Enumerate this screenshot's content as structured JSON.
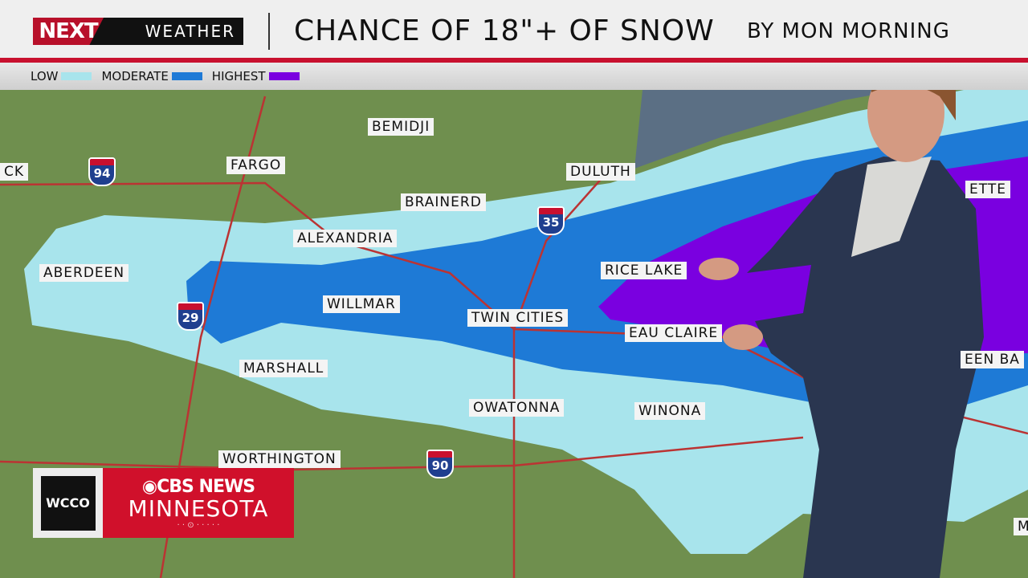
{
  "header": {
    "brand_next": "NEXT",
    "brand_weather": "WEATHER",
    "title": "CHANCE OF 18\"+ OF SNOW",
    "subtitle": "BY MON MORNING"
  },
  "legend": [
    {
      "label": "LOW",
      "color": "#a8e4ec"
    },
    {
      "label": "MODERATE",
      "color": "#1e7ad6"
    },
    {
      "label": "HIGHEST",
      "color": "#7a00e0"
    }
  ],
  "cities": {
    "ck": "CK",
    "fargo": "FARGO",
    "bemidji": "BEMIDJI",
    "duluth": "DULUTH",
    "brainerd": "BRAINERD",
    "alexandria": "ALEXANDRIA",
    "aberdeen": "ABERDEEN",
    "rice_lake": "RICE LAKE",
    "willmar": "WILLMAR",
    "twin_cities": "TWIN CITIES",
    "eau_claire": "EAU CLAIRE",
    "marshall": "MARSHALL",
    "owatonna": "OWATONNA",
    "winona": "WINONA",
    "worthington": "WORTHINGTON",
    "marquette": "ETTE",
    "green_bay": "EEN BA",
    "m": "M"
  },
  "interstates": {
    "i94": "94",
    "i35": "35",
    "i29": "29",
    "i90": "90"
  },
  "station_bug": {
    "call": "WCCO",
    "network": "CBS NEWS",
    "region": "MINNESOTA",
    "dots": "·  ·  ⊙  ·  ·  ·  ·  ·"
  }
}
